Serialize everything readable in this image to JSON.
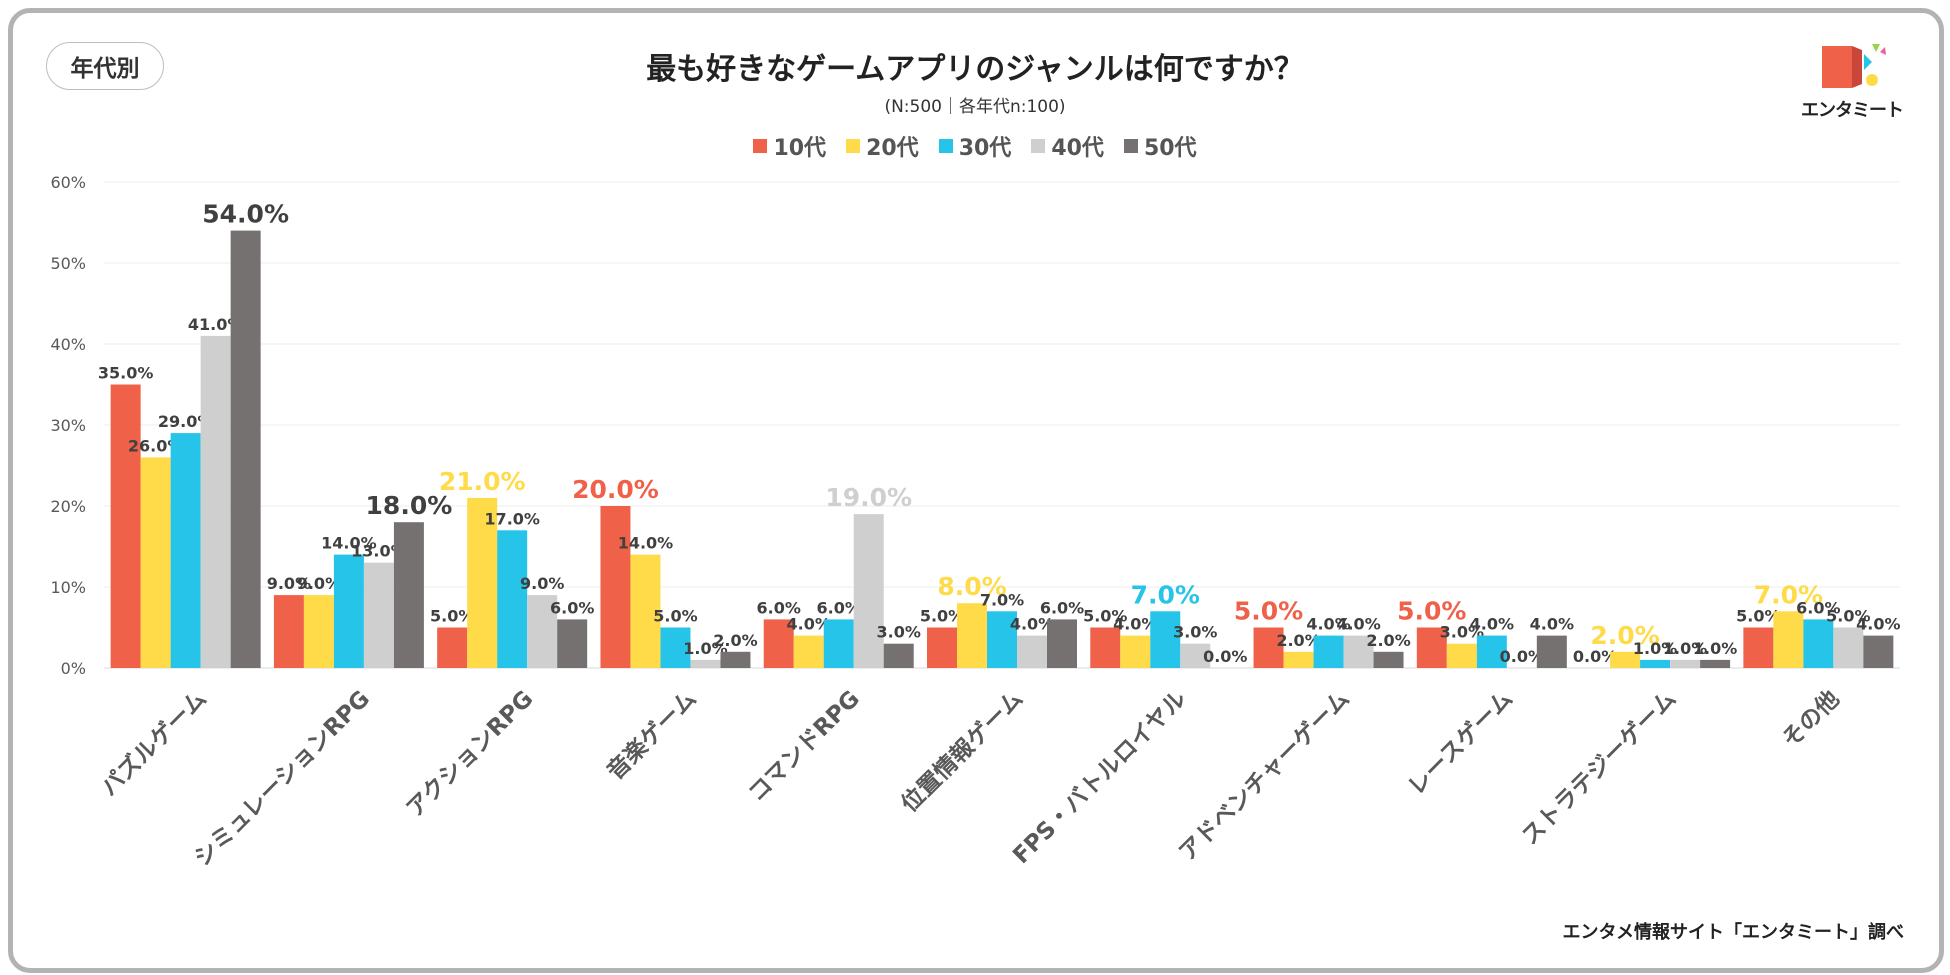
{
  "badge": "年代別",
  "colors": {
    "10代": "#F0614A",
    "20代": "#FFDB4A",
    "30代": "#25C4E8",
    "40代": "#D0CFCF",
    "50代": "#767171"
  },
  "logo": {
    "text": "エンタミート",
    "icon": "entameet-logo-icon"
  },
  "source": "エンタメ情報サイト「エンタミート」調べ",
  "chart_data": {
    "type": "bar",
    "title": "最も好きなゲームアプリのジャンルは何ですか？",
    "subtitle": "(N:500｜各年代n:100)",
    "xlabel": "",
    "ylabel": "",
    "ylim": [
      0,
      60
    ],
    "yticks": [
      "0%",
      "10%",
      "20%",
      "30%",
      "40%",
      "50%",
      "60%"
    ],
    "grid": true,
    "legend_position": "top-center",
    "categories": [
      "パズルゲーム",
      "シミュレーションRPG",
      "アクションRPG",
      "音楽ゲーム",
      "コマンドRPG",
      "位置情報ゲーム",
      "FPS・バトルロイヤル",
      "アドベンチャーゲーム",
      "レースゲーム",
      "ストラテジーゲーム",
      "その他"
    ],
    "series": [
      {
        "name": "10代",
        "color": "#F0614A",
        "values": [
          35,
          9,
          5,
          20,
          6,
          5,
          5,
          5,
          5,
          0,
          5
        ],
        "labels": [
          "35.0%",
          "9.0%",
          "5.0%",
          "20.0%",
          "6.0%",
          "5.0%",
          "5.0%",
          "5.0%",
          "5.0%",
          "0.0%",
          "5.0%"
        ]
      },
      {
        "name": "20代",
        "color": "#FFDB4A",
        "values": [
          26,
          9,
          21,
          14,
          4,
          8,
          4,
          2,
          3,
          2,
          7
        ],
        "labels": [
          "26.0%",
          "9.0%",
          "21.0%",
          "14.0%",
          "4.0%",
          "8.0%",
          "4.0%",
          "2.0%",
          "3.0%",
          "2.0%",
          "7.0%"
        ]
      },
      {
        "name": "30代",
        "color": "#25C4E8",
        "values": [
          29,
          14,
          17,
          5,
          6,
          7,
          7,
          4,
          4,
          1,
          6
        ],
        "labels": [
          "29.0%",
          "14.0%",
          "17.0%",
          "5.0%",
          "6.0%",
          "7.0%",
          "7.0%",
          "4.0%",
          "4.0%",
          "1.0%",
          "6.0%"
        ]
      },
      {
        "name": "40代",
        "color": "#D0CFCF",
        "values": [
          41,
          13,
          9,
          1,
          19,
          4,
          3,
          4,
          0,
          1,
          5
        ],
        "labels": [
          "41.0%",
          "13.0%",
          "9.0%",
          "1.0%",
          "19.0%",
          "4.0%",
          "3.0%",
          "4.0%",
          "0.0%",
          "1.0%",
          "5.0%"
        ]
      },
      {
        "name": "50代",
        "color": "#767171",
        "values": [
          54,
          18,
          6,
          2,
          3,
          6,
          0,
          2,
          4,
          1,
          4
        ],
        "labels": [
          "54.0%",
          "18.0%",
          "6.0%",
          "2.0%",
          "3.0%",
          "6.0%",
          "0.0%",
          "2.0%",
          "4.0%",
          "1.0%",
          "4.0%"
        ]
      }
    ],
    "highlights": [
      {
        "series": "50代",
        "category": "パズルゲーム"
      },
      {
        "series": "50代",
        "category": "シミュレーションRPG"
      },
      {
        "series": "20代",
        "category": "アクションRPG"
      },
      {
        "series": "10代",
        "category": "音楽ゲーム"
      },
      {
        "series": "40代",
        "category": "コマンドRPG"
      },
      {
        "series": "20代",
        "category": "位置情報ゲーム"
      },
      {
        "series": "30代",
        "category": "FPS・バトルロイヤル"
      },
      {
        "series": "10代",
        "category": "アドベンチャーゲーム"
      },
      {
        "series": "10代",
        "category": "レースゲーム"
      },
      {
        "series": "20代",
        "category": "ストラテジーゲーム"
      },
      {
        "series": "20代",
        "category": "その他"
      }
    ]
  }
}
